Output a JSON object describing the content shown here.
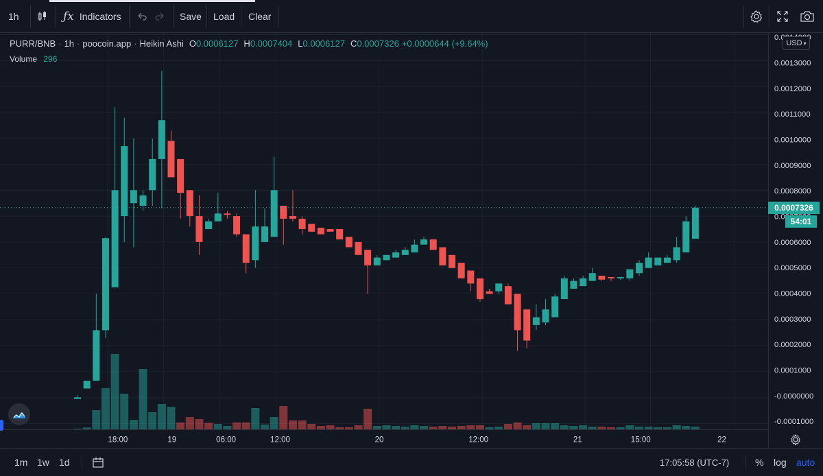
{
  "toolbar": {
    "interval": "1h",
    "indicators_label": "Indicators",
    "save_label": "Save",
    "load_label": "Load",
    "clear_label": "Clear"
  },
  "legend": {
    "symbol": "PURR/BNB",
    "interval": "1h",
    "source": "poocoin.app",
    "chart_style": "Heikin Ashi",
    "open_key": "O",
    "open": "0.0006127",
    "high_key": "H",
    "high": "0.0007404",
    "low_key": "L",
    "low": "0.0006127",
    "close_key": "C",
    "close": "0.0007326",
    "change": "+0.0000644 (+9.64%)"
  },
  "volume": {
    "label": "Volume",
    "value": "296"
  },
  "price_axis": {
    "currency": "USD",
    "last_price": "0.0007326",
    "countdown": "54:01"
  },
  "bottombar": {
    "ranges": [
      "1m",
      "1w",
      "1d"
    ],
    "clock": "17:05:58 (UTC-7)",
    "percent": "%",
    "log": "log",
    "auto": "auto"
  },
  "colors": {
    "up": "#26a69a",
    "down": "#ef5350",
    "background": "#131722",
    "grid": "#1e222d",
    "text": "#d1d4dc",
    "accent": "#2962ff"
  },
  "chart_data": {
    "type": "candlestick",
    "style": "Heikin Ashi",
    "y_ticks": [
      "0.0014000",
      "0.0013000",
      "0.0012000",
      "0.0011000",
      "0.0010000",
      "0.0009000",
      "0.0008000",
      "0.0007000",
      "0.0006000",
      "0.0005000",
      "0.0004000",
      "0.0003000",
      "0.0002000",
      "0.0001000",
      "-0.0000000",
      "-0.0001000"
    ],
    "y_tick_values": [
      0.0014,
      0.0013,
      0.0012,
      0.0011,
      0.001,
      0.0009,
      0.0008,
      0.0007,
      0.0006,
      0.0005,
      0.0004,
      0.0003,
      0.0002,
      0.0001,
      0.0,
      -0.0001
    ],
    "x_ticks": [
      {
        "label": "18:00",
        "index": 3
      },
      {
        "label": "19",
        "index": 9
      },
      {
        "label": "06:00",
        "index": 15
      },
      {
        "label": "12:00",
        "index": 21
      },
      {
        "label": "20",
        "index": 32
      },
      {
        "label": "12:00",
        "index": 43
      },
      {
        "label": "21",
        "index": 54
      },
      {
        "label": "15:00",
        "index": 61
      },
      {
        "label": "22",
        "index": 70
      }
    ],
    "candles": [
      {
        "o": -5.2e-06,
        "h": 8.8e-06,
        "l": -5.2e-06,
        "c": 1e-06
      },
      {
        "o": 3.5e-05,
        "h": 6.3e-05,
        "l": 3.5e-05,
        "c": 6.5e-05
      },
      {
        "o": 6.5e-05,
        "h": 0.0004,
        "l": 6.5e-05,
        "c": 0.00026
      },
      {
        "o": 0.00026,
        "h": 0.00062,
        "l": 0.00023,
        "c": 0.000615
      },
      {
        "o": 0.000425,
        "h": 0.00112,
        "l": 0.000425,
        "c": 0.0008
      },
      {
        "o": 0.0007,
        "h": 0.00108,
        "l": 0.0006,
        "c": 0.00097
      },
      {
        "o": 0.00075,
        "h": 0.001,
        "l": 0.00058,
        "c": 0.0008
      },
      {
        "o": 0.00074,
        "h": 0.0008,
        "l": 0.00072,
        "c": 0.00078
      },
      {
        "o": 0.0008,
        "h": 0.001,
        "l": 0.00074,
        "c": 0.00092
      },
      {
        "o": 0.00092,
        "h": 0.00126,
        "l": 0.00073,
        "c": 0.00107
      },
      {
        "o": 0.00099,
        "h": 0.00103,
        "l": 0.00085,
        "c": 0.00085
      },
      {
        "o": 0.00092,
        "h": 0.00092,
        "l": 0.00069,
        "c": 0.00079
      },
      {
        "o": 0.0008,
        "h": 0.0008,
        "l": 0.00066,
        "c": 0.0007
      },
      {
        "o": 0.0007,
        "h": 0.00078,
        "l": 0.00055,
        "c": 0.0006
      },
      {
        "o": 0.00065,
        "h": 0.00069,
        "l": 0.00065,
        "c": 0.00068
      },
      {
        "o": 0.00068,
        "h": 0.00079,
        "l": 0.00068,
        "c": 0.00071
      },
      {
        "o": 0.00071,
        "h": 0.00072,
        "l": 0.00069,
        "c": 0.000705
      },
      {
        "o": 0.0007,
        "h": 0.00071,
        "l": 0.00062,
        "c": 0.00063
      },
      {
        "o": 0.00063,
        "h": 0.00063,
        "l": 0.00048,
        "c": 0.00052
      },
      {
        "o": 0.00053,
        "h": 0.0008,
        "l": 0.0005,
        "c": 0.00066
      },
      {
        "o": 0.0006,
        "h": 0.00073,
        "l": 0.0006,
        "c": 0.00066
      },
      {
        "o": 0.00062,
        "h": 0.00093,
        "l": 0.00062,
        "c": 0.0008
      },
      {
        "o": 0.00074,
        "h": 0.00074,
        "l": 0.00059,
        "c": 0.00069
      },
      {
        "o": 0.0007,
        "h": 0.0008,
        "l": 0.00068,
        "c": 0.00069
      },
      {
        "o": 0.00069,
        "h": 0.0007,
        "l": 0.00063,
        "c": 0.00065
      },
      {
        "o": 0.00067,
        "h": 0.00067,
        "l": 0.00064,
        "c": 0.00064
      },
      {
        "o": 0.000655,
        "h": 0.000655,
        "l": 0.00063,
        "c": 0.00063
      },
      {
        "o": 0.00065,
        "h": 0.00065,
        "l": 0.00064,
        "c": 0.00064
      },
      {
        "o": 0.00065,
        "h": 0.00065,
        "l": 0.00061,
        "c": 0.00061
      },
      {
        "o": 0.00062,
        "h": 0.00062,
        "l": 0.00058,
        "c": 0.00058
      },
      {
        "o": 0.0006,
        "h": 0.0006,
        "l": 0.00055,
        "c": 0.00055
      },
      {
        "o": 0.00057,
        "h": 0.00057,
        "l": 0.0004,
        "c": 0.00051
      },
      {
        "o": 0.00051,
        "h": 0.00055,
        "l": 0.00051,
        "c": 0.00054
      },
      {
        "o": 0.00053,
        "h": 0.00055,
        "l": 0.00053,
        "c": 0.00055
      },
      {
        "o": 0.00054,
        "h": 0.00057,
        "l": 0.00054,
        "c": 0.00056
      },
      {
        "o": 0.00055,
        "h": 0.00058,
        "l": 0.00055,
        "c": 0.00057
      },
      {
        "o": 0.00056,
        "h": 0.00061,
        "l": 0.00056,
        "c": 0.00059
      },
      {
        "o": 0.00059,
        "h": 0.00062,
        "l": 0.00059,
        "c": 0.00061
      },
      {
        "o": 0.00061,
        "h": 0.00061,
        "l": 0.00057,
        "c": 0.00057
      },
      {
        "o": 0.00058,
        "h": 0.00058,
        "l": 0.00051,
        "c": 0.00051
      },
      {
        "o": 0.00055,
        "h": 0.00055,
        "l": 0.0005,
        "c": 0.0005
      },
      {
        "o": 0.00052,
        "h": 0.00052,
        "l": 0.00046,
        "c": 0.00046
      },
      {
        "o": 0.00049,
        "h": 0.00049,
        "l": 0.00041,
        "c": 0.00044
      },
      {
        "o": 0.00046,
        "h": 0.00046,
        "l": 0.00037,
        "c": 0.00038
      },
      {
        "o": 0.00041,
        "h": 0.00042,
        "l": 0.0004,
        "c": 0.0004
      },
      {
        "o": 0.00041,
        "h": 0.00044,
        "l": 0.0004,
        "c": 0.00044
      },
      {
        "o": 0.00043,
        "h": 0.00044,
        "l": 0.00036,
        "c": 0.00036
      },
      {
        "o": 0.0004,
        "h": 0.0004,
        "l": 0.00018,
        "c": 0.00026
      },
      {
        "o": 0.00034,
        "h": 0.00034,
        "l": 0.00019,
        "c": 0.00022
      },
      {
        "o": 0.00028,
        "h": 0.00036,
        "l": 0.00026,
        "c": 0.00031
      },
      {
        "o": 0.00029,
        "h": 0.00038,
        "l": 0.00028,
        "c": 0.00034
      },
      {
        "o": 0.00031,
        "h": 0.0004,
        "l": 0.00031,
        "c": 0.00039
      },
      {
        "o": 0.00038,
        "h": 0.00047,
        "l": 0.00038,
        "c": 0.00046
      },
      {
        "o": 0.00042,
        "h": 0.00046,
        "l": 0.00042,
        "c": 0.00045
      },
      {
        "o": 0.00043,
        "h": 0.00047,
        "l": 0.00043,
        "c": 0.00046
      },
      {
        "o": 0.00045,
        "h": 0.0005,
        "l": 0.00045,
        "c": 0.00048
      },
      {
        "o": 0.00047,
        "h": 0.00047,
        "l": 0.00045,
        "c": 0.000455
      },
      {
        "o": 0.000465,
        "h": 0.000465,
        "l": 0.00045,
        "c": 0.00046
      },
      {
        "o": 0.00046,
        "h": 0.000465,
        "l": 0.000455,
        "c": 0.000465
      },
      {
        "o": 0.00046,
        "h": 0.000495,
        "l": 0.00045,
        "c": 0.000495
      },
      {
        "o": 0.00048,
        "h": 0.00053,
        "l": 0.00047,
        "c": 0.00052
      },
      {
        "o": 0.0005,
        "h": 0.00056,
        "l": 0.0005,
        "c": 0.00054
      },
      {
        "o": 0.00051,
        "h": 0.00054,
        "l": 0.00051,
        "c": 0.00054
      },
      {
        "o": 0.00052,
        "h": 0.00055,
        "l": 0.00052,
        "c": 0.00054
      },
      {
        "o": 0.00053,
        "h": 0.00062,
        "l": 0.00052,
        "c": 0.00058
      },
      {
        "o": 0.00056,
        "h": 0.0007,
        "l": 0.00056,
        "c": 0.00068
      },
      {
        "o": 0.0006127,
        "h": 0.0007404,
        "l": 0.0006127,
        "c": 0.0007326
      }
    ],
    "volume_bars": [
      {
        "v": 0.0,
        "dir": "up"
      },
      {
        "v": 2.75e-06,
        "dir": "up"
      },
      {
        "v": 2.8e-05,
        "dir": "up"
      },
      {
        "v": 6e-05,
        "dir": "up"
      },
      {
        "v": 0.00011,
        "dir": "up"
      },
      {
        "v": 5.2e-05,
        "dir": "up"
      },
      {
        "v": 1.4e-05,
        "dir": "up"
      },
      {
        "v": 8.8e-05,
        "dir": "up"
      },
      {
        "v": 2.5e-05,
        "dir": "up"
      },
      {
        "v": 3.7e-05,
        "dir": "up"
      },
      {
        "v": 3.3e-05,
        "dir": "up"
      },
      {
        "v": 1e-05,
        "dir": "down"
      },
      {
        "v": 1.8e-05,
        "dir": "down"
      },
      {
        "v": 1.5e-05,
        "dir": "down"
      },
      {
        "v": 9.5e-06,
        "dir": "down"
      },
      {
        "v": 8e-06,
        "dir": "up"
      },
      {
        "v": 5e-06,
        "dir": "up"
      },
      {
        "v": 1e-05,
        "dir": "down"
      },
      {
        "v": 1e-05,
        "dir": "down"
      },
      {
        "v": 3.1e-05,
        "dir": "up"
      },
      {
        "v": 7e-06,
        "dir": "up"
      },
      {
        "v": 1.8e-05,
        "dir": "up"
      },
      {
        "v": 3.4e-05,
        "dir": "down"
      },
      {
        "v": 1.3e-05,
        "dir": "down"
      },
      {
        "v": 1.3e-05,
        "dir": "down"
      },
      {
        "v": 8e-06,
        "dir": "down"
      },
      {
        "v": 5e-06,
        "dir": "down"
      },
      {
        "v": 6e-06,
        "dir": "down"
      },
      {
        "v": 3e-06,
        "dir": "down"
      },
      {
        "v": 3e-06,
        "dir": "down"
      },
      {
        "v": 6e-06,
        "dir": "down"
      },
      {
        "v": 3e-05,
        "dir": "down"
      },
      {
        "v": 5e-06,
        "dir": "up"
      },
      {
        "v": 6e-06,
        "dir": "up"
      },
      {
        "v": 5e-06,
        "dir": "up"
      },
      {
        "v": 4e-06,
        "dir": "up"
      },
      {
        "v": 6e-06,
        "dir": "up"
      },
      {
        "v": 5e-06,
        "dir": "up"
      },
      {
        "v": 4e-06,
        "dir": "down"
      },
      {
        "v": 5e-06,
        "dir": "down"
      },
      {
        "v": 4e-06,
        "dir": "down"
      },
      {
        "v": 5e-06,
        "dir": "down"
      },
      {
        "v": 6e-06,
        "dir": "down"
      },
      {
        "v": 6e-06,
        "dir": "down"
      },
      {
        "v": 3e-06,
        "dir": "up"
      },
      {
        "v": 4e-06,
        "dir": "up"
      },
      {
        "v": 8e-06,
        "dir": "down"
      },
      {
        "v": 1e-05,
        "dir": "down"
      },
      {
        "v": 6e-06,
        "dir": "down"
      },
      {
        "v": 9e-06,
        "dir": "up"
      },
      {
        "v": 9e-06,
        "dir": "up"
      },
      {
        "v": 9e-06,
        "dir": "up"
      },
      {
        "v": 6e-06,
        "dir": "up"
      },
      {
        "v": 5e-06,
        "dir": "up"
      },
      {
        "v": 6e-06,
        "dir": "up"
      },
      {
        "v": 4e-06,
        "dir": "up"
      },
      {
        "v": 4e-06,
        "dir": "down"
      },
      {
        "v": 3e-06,
        "dir": "down"
      },
      {
        "v": 3e-06,
        "dir": "up"
      },
      {
        "v": 6e-06,
        "dir": "up"
      },
      {
        "v": 4e-06,
        "dir": "up"
      },
      {
        "v": 4e-06,
        "dir": "up"
      },
      {
        "v": 3e-06,
        "dir": "up"
      },
      {
        "v": 3e-06,
        "dir": "up"
      },
      {
        "v": 6e-06,
        "dir": "up"
      },
      {
        "v": 5e-06,
        "dir": "up"
      },
      {
        "v": 4e-06,
        "dir": "up"
      }
    ]
  }
}
